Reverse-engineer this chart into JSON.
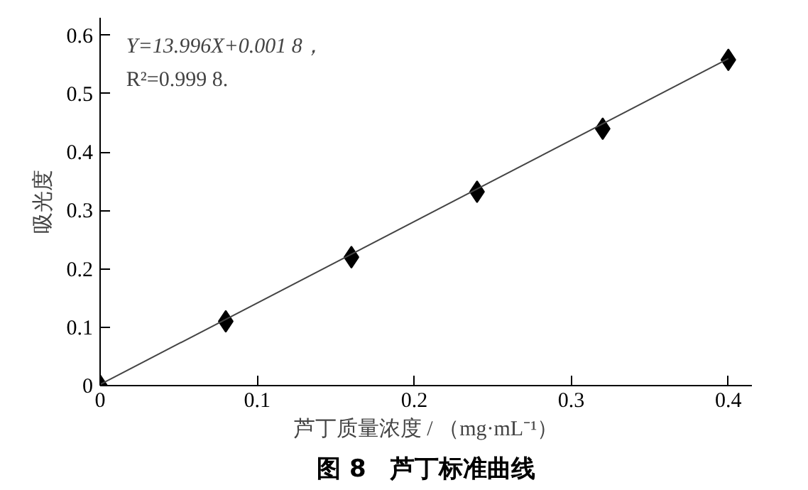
{
  "chart_data": {
    "type": "scatter",
    "title": "图 8　芦丁标准曲线",
    "xlabel": "芦丁质量浓度 / （mg·mL⁻¹）",
    "ylabel": "吸光度",
    "annotations": [
      "Y=13.996X+0.001 8，",
      "R²=0.999 8."
    ],
    "series": [
      {
        "color": "#000000",
        "marker": "diamond",
        "x": [
          0,
          0.08,
          0.16,
          0.24,
          0.32,
          0.4
        ],
        "values": [
          0,
          0.11,
          0.22,
          0.332,
          0.44,
          0.558
        ]
      },
      {
        "type": "line",
        "color": "#444444",
        "marker": "none",
        "x": [
          0,
          0.4
        ],
        "values": [
          0.002,
          0.56
        ]
      }
    ],
    "xlim": [
      0,
      0.415
    ],
    "ylim": [
      0,
      0.63
    ],
    "xticks": [
      0,
      0.1,
      0.2,
      0.3,
      0.4
    ],
    "yticks": [
      0,
      0.1,
      0.2,
      0.3,
      0.4,
      0.5,
      0.6
    ],
    "grid": false
  }
}
